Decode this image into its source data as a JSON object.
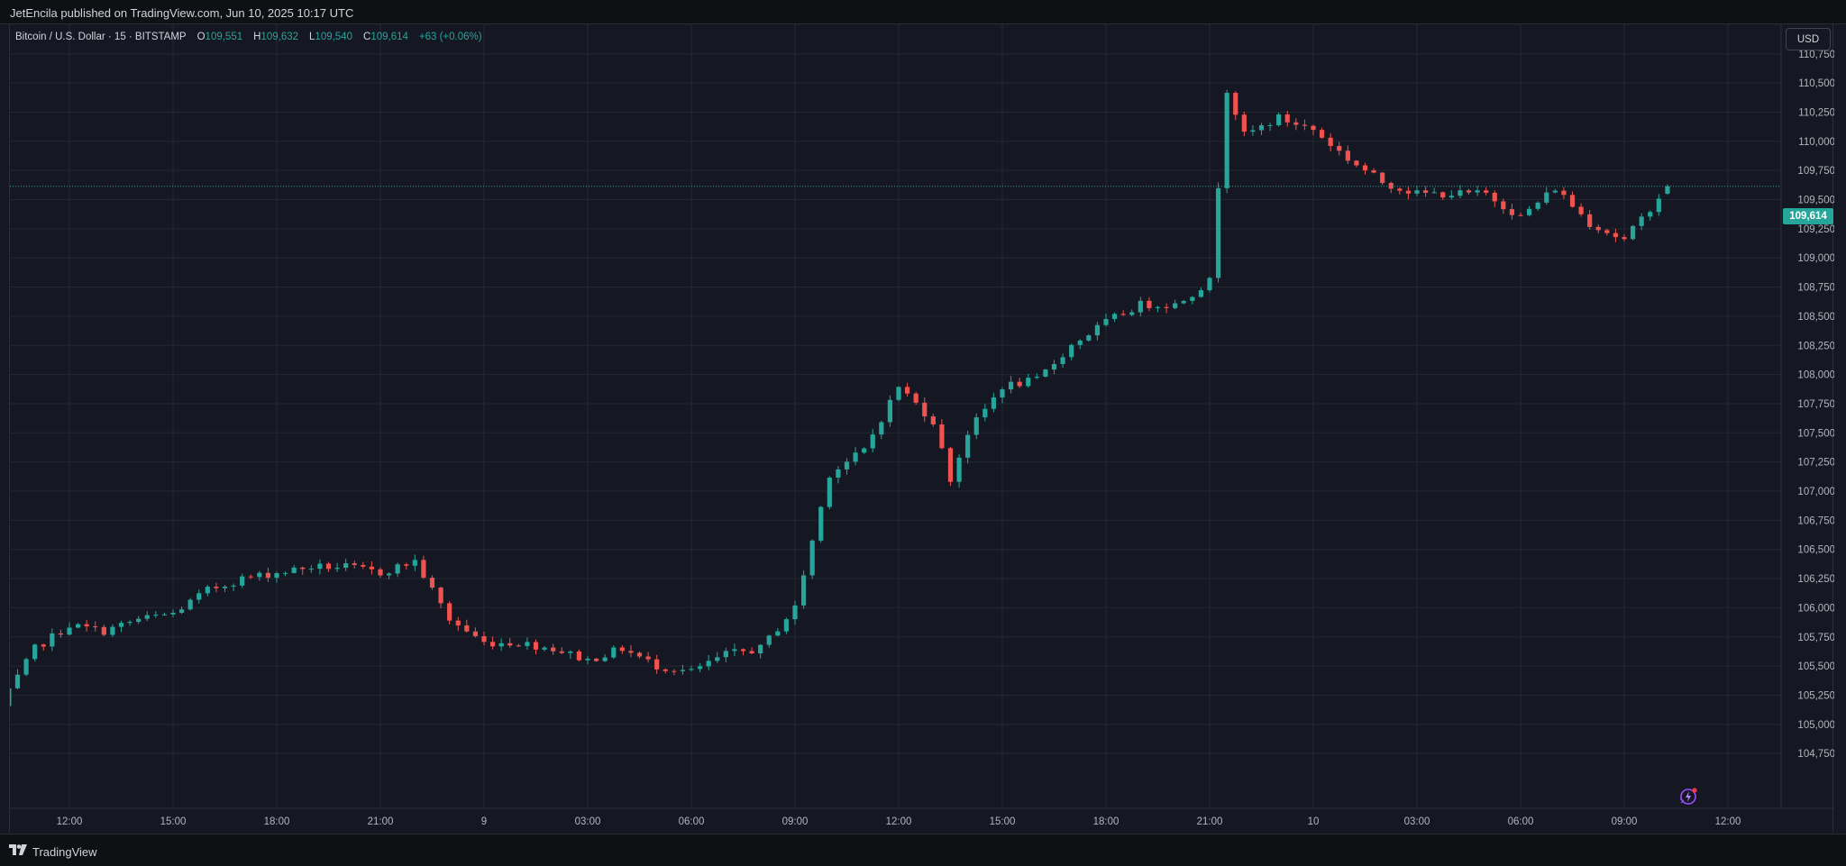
{
  "header": {
    "published_text": "JetEncila published on TradingView.com, Jun 10, 2025 10:17 UTC"
  },
  "legend": {
    "symbol": "Bitcoin / U.S. Dollar · 15 · BITSTAMP",
    "open_label": "O",
    "open": "109,551",
    "high_label": "H",
    "high": "109,632",
    "low_label": "L",
    "low": "109,540",
    "close_label": "C",
    "close": "109,614",
    "change": "+63 (+0.06%)"
  },
  "currency": "USD",
  "last_price_label": "109,614",
  "footer": {
    "brand": "TradingView"
  },
  "colors": {
    "up": "#26a69a",
    "down": "#ef5350",
    "background": "#151822",
    "grid": "#232733",
    "axis_text": "#b2b5be"
  },
  "icons": {
    "brand_logo": "tradingview-logo-icon",
    "spark": "lightning-spark-icon"
  },
  "chart_data": {
    "type": "candlestick",
    "title": "Bitcoin / U.S. Dollar · 15 · BITSTAMP",
    "interval_minutes": 15,
    "x_axis_ticks": [
      "12:00",
      "15:00",
      "18:00",
      "21:00",
      "9",
      "03:00",
      "06:00",
      "09:00",
      "12:00",
      "15:00",
      "18:00",
      "21:00",
      "10",
      "03:00",
      "06:00",
      "09:00",
      "12:00"
    ],
    "y_axis_ticks": [
      104750,
      105000,
      105250,
      105500,
      105750,
      106000,
      106250,
      106500,
      106750,
      107000,
      107250,
      107500,
      107750,
      108000,
      108250,
      108500,
      108750,
      109000,
      109250,
      109500,
      109750,
      110000,
      110250,
      110500,
      110750
    ],
    "y_range": [
      104500,
      111000
    ],
    "last_price": 109614,
    "grid": true,
    "anchors": [
      {
        "x": "Jun 8 10:00",
        "close": 105150
      },
      {
        "x": "Jun 8 11:00",
        "close": 105650
      },
      {
        "x": "Jun 8 12:00",
        "close": 105850
      },
      {
        "x": "Jun 8 13:00",
        "close": 105800
      },
      {
        "x": "Jun 8 14:00",
        "close": 105900
      },
      {
        "x": "Jun 8 15:00",
        "close": 105950
      },
      {
        "x": "Jun 8 16:00",
        "close": 106150
      },
      {
        "x": "Jun 8 17:00",
        "close": 106250
      },
      {
        "x": "Jun 8 18:00",
        "close": 106300
      },
      {
        "x": "Jun 8 19:00",
        "close": 106350
      },
      {
        "x": "Jun 8 20:00",
        "close": 106350
      },
      {
        "x": "Jun 8 21:00",
        "close": 106300
      },
      {
        "x": "Jun 8 22:00",
        "close": 106400
      },
      {
        "x": "Jun 8 23:00",
        "close": 105900
      },
      {
        "x": "Jun 9 00:00",
        "close": 105700
      },
      {
        "x": "Jun 9 01:00",
        "close": 105700
      },
      {
        "x": "Jun 9 02:00",
        "close": 105650
      },
      {
        "x": "Jun 9 03:00",
        "close": 105550
      },
      {
        "x": "Jun 9 04:00",
        "close": 105650
      },
      {
        "x": "Jun 9 05:00",
        "close": 105500
      },
      {
        "x": "Jun 9 06:00",
        "close": 105450
      },
      {
        "x": "Jun 9 07:00",
        "close": 105600
      },
      {
        "x": "Jun 9 08:00",
        "close": 105650
      },
      {
        "x": "Jun 9 09:00",
        "close": 106000
      },
      {
        "x": "Jun 9 10:00",
        "close": 107150
      },
      {
        "x": "Jun 9 11:00",
        "close": 107350
      },
      {
        "x": "Jun 9 12:00",
        "close": 107900
      },
      {
        "x": "Jun 9 13:00",
        "close": 107600
      },
      {
        "x": "Jun 9 13:30",
        "close": 107100
      },
      {
        "x": "Jun 9 14:00",
        "close": 107500
      },
      {
        "x": "Jun 9 15:00",
        "close": 107900
      },
      {
        "x": "Jun 9 16:00",
        "close": 107950
      },
      {
        "x": "Jun 9 17:00",
        "close": 108250
      },
      {
        "x": "Jun 9 18:00",
        "close": 108450
      },
      {
        "x": "Jun 9 19:00",
        "close": 108600
      },
      {
        "x": "Jun 9 20:00",
        "close": 108600
      },
      {
        "x": "Jun 9 21:00",
        "close": 108800
      },
      {
        "x": "Jun 9 21:30",
        "close": 110450
      },
      {
        "x": "Jun 9 22:00",
        "close": 110050
      },
      {
        "x": "Jun 9 23:00",
        "close": 110200
      },
      {
        "x": "Jun 10 00:00",
        "close": 110100
      },
      {
        "x": "Jun 10 01:00",
        "close": 109850
      },
      {
        "x": "Jun 10 02:00",
        "close": 109650
      },
      {
        "x": "Jun 10 03:00",
        "close": 109550
      },
      {
        "x": "Jun 10 04:00",
        "close": 109550
      },
      {
        "x": "Jun 10 05:00",
        "close": 109550
      },
      {
        "x": "Jun 10 06:00",
        "close": 109350
      },
      {
        "x": "Jun 10 07:00",
        "close": 109600
      },
      {
        "x": "Jun 10 08:00",
        "close": 109300
      },
      {
        "x": "Jun 10 09:00",
        "close": 109150
      },
      {
        "x": "Jun 10 10:15",
        "close": 109614
      }
    ]
  }
}
